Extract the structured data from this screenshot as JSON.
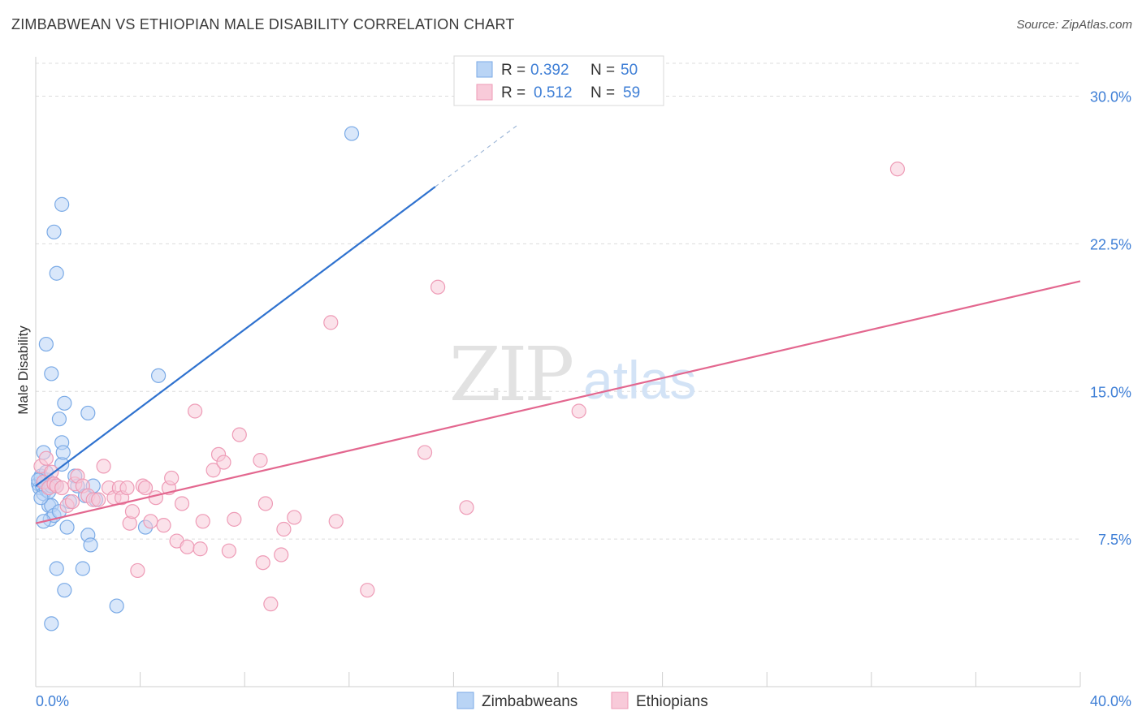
{
  "title": "ZIMBABWEAN VS ETHIOPIAN MALE DISABILITY CORRELATION CHART",
  "source": "Source: ZipAtlas.com",
  "watermark": {
    "zip": "ZIP",
    "atlas": "atlas"
  },
  "colors": {
    "blue_fill": "#b9d4f5",
    "blue_stroke": "#7aaae6",
    "blue_line": "#2f72cf",
    "pink_fill": "#f8cad9",
    "pink_stroke": "#ee9bb6",
    "pink_line": "#e3678f",
    "axis_value": "#3f7fd6",
    "grid": "#dcdcdc"
  },
  "stats": [
    {
      "r_label": "R =",
      "r": "0.392",
      "n_label": "N =",
      "n": "50"
    },
    {
      "r_label": "R =",
      "r": "0.512",
      "n_label": "N =",
      "n": "59"
    }
  ],
  "chart_data": {
    "type": "scatter",
    "title": "ZIMBABWEAN VS ETHIOPIAN MALE DISABILITY CORRELATION CHART",
    "xlabel": "",
    "ylabel": "Male Disability",
    "xlim": [
      0,
      40
    ],
    "ylim": [
      0,
      32
    ],
    "x_tick_labels": [
      {
        "value": 0,
        "label": "0.0%"
      },
      {
        "value": 40,
        "label": "40.0%"
      }
    ],
    "x_minor_ticks": [
      4,
      8,
      12,
      16,
      20,
      24,
      28,
      32,
      36,
      40
    ],
    "y_ticks": [
      {
        "value": 7.5,
        "label": "7.5%"
      },
      {
        "value": 15.0,
        "label": "15.0%"
      },
      {
        "value": 22.5,
        "label": "22.5%"
      },
      {
        "value": 30.0,
        "label": "30.0%"
      }
    ],
    "grid": true,
    "legend_position": "bottom-center",
    "series": [
      {
        "name": "Zimbabweans",
        "color": "#b9d4f5",
        "r": 0.392,
        "n": 50,
        "trend": {
          "x0": 0.0,
          "y0": 10.2,
          "x1": 15.3,
          "y1": 25.4,
          "dashed_to_x": 18.5
        },
        "points": [
          [
            0.1,
            10.3
          ],
          [
            0.15,
            10.1
          ],
          [
            0.2,
            10.6
          ],
          [
            0.25,
            10.2
          ],
          [
            0.3,
            9.8
          ],
          [
            0.35,
            10.4
          ],
          [
            0.4,
            10.0
          ],
          [
            0.45,
            10.5
          ],
          [
            0.5,
            9.9
          ],
          [
            0.2,
            10.7
          ],
          [
            0.3,
            11.9
          ],
          [
            0.4,
            10.9
          ],
          [
            0.5,
            9.2
          ],
          [
            0.55,
            8.5
          ],
          [
            0.6,
            9.2
          ],
          [
            0.7,
            8.7
          ],
          [
            0.8,
            10.2
          ],
          [
            0.9,
            8.9
          ],
          [
            1.0,
            11.3
          ],
          [
            1.0,
            12.4
          ],
          [
            1.05,
            11.9
          ],
          [
            1.1,
            14.4
          ],
          [
            0.9,
            13.6
          ],
          [
            0.6,
            15.9
          ],
          [
            0.4,
            17.4
          ],
          [
            0.8,
            21.0
          ],
          [
            0.7,
            23.1
          ],
          [
            1.0,
            24.5
          ],
          [
            1.2,
            8.1
          ],
          [
            1.5,
            10.7
          ],
          [
            1.6,
            10.2
          ],
          [
            1.8,
            6.0
          ],
          [
            1.9,
            9.7
          ],
          [
            2.0,
            13.9
          ],
          [
            2.0,
            7.7
          ],
          [
            2.1,
            7.2
          ],
          [
            2.2,
            10.2
          ],
          [
            2.3,
            9.5
          ],
          [
            1.1,
            4.9
          ],
          [
            0.6,
            3.2
          ],
          [
            0.8,
            6.0
          ],
          [
            3.1,
            4.1
          ],
          [
            4.2,
            8.1
          ],
          [
            4.7,
            15.8
          ],
          [
            12.1,
            28.1
          ],
          [
            0.3,
            8.4
          ],
          [
            0.6,
            10.2
          ],
          [
            0.1,
            10.5
          ],
          [
            1.3,
            9.4
          ],
          [
            0.2,
            9.6
          ]
        ]
      },
      {
        "name": "Ethiopians",
        "color": "#f8cad9",
        "r": 0.512,
        "n": 59,
        "trend": {
          "x0": 0.0,
          "y0": 8.3,
          "x1": 40.0,
          "y1": 20.6
        },
        "points": [
          [
            0.2,
            11.2
          ],
          [
            0.3,
            10.4
          ],
          [
            0.4,
            11.6
          ],
          [
            0.5,
            10.1
          ],
          [
            0.6,
            10.9
          ],
          [
            0.7,
            10.3
          ],
          [
            0.8,
            10.2
          ],
          [
            1.0,
            10.1
          ],
          [
            1.2,
            9.2
          ],
          [
            1.4,
            9.4
          ],
          [
            1.5,
            10.3
          ],
          [
            1.6,
            10.7
          ],
          [
            1.8,
            10.2
          ],
          [
            2.0,
            9.7
          ],
          [
            2.2,
            9.5
          ],
          [
            2.4,
            9.5
          ],
          [
            2.6,
            11.2
          ],
          [
            2.8,
            10.1
          ],
          [
            3.0,
            9.6
          ],
          [
            3.2,
            10.1
          ],
          [
            3.3,
            9.6
          ],
          [
            3.5,
            10.1
          ],
          [
            3.6,
            8.3
          ],
          [
            3.7,
            8.9
          ],
          [
            3.9,
            5.9
          ],
          [
            4.1,
            10.2
          ],
          [
            4.2,
            10.1
          ],
          [
            4.4,
            8.4
          ],
          [
            4.6,
            9.6
          ],
          [
            4.9,
            8.2
          ],
          [
            5.1,
            10.1
          ],
          [
            5.2,
            10.6
          ],
          [
            5.4,
            7.4
          ],
          [
            5.6,
            9.3
          ],
          [
            5.8,
            7.1
          ],
          [
            6.1,
            14.0
          ],
          [
            6.3,
            7.0
          ],
          [
            6.4,
            8.4
          ],
          [
            6.8,
            11.0
          ],
          [
            7.0,
            11.8
          ],
          [
            7.2,
            11.4
          ],
          [
            7.4,
            6.9
          ],
          [
            7.6,
            8.5
          ],
          [
            7.8,
            12.8
          ],
          [
            8.6,
            11.5
          ],
          [
            8.7,
            6.3
          ],
          [
            8.8,
            9.3
          ],
          [
            9.0,
            4.2
          ],
          [
            9.4,
            6.7
          ],
          [
            9.5,
            8.0
          ],
          [
            9.9,
            8.6
          ],
          [
            11.3,
            18.5
          ],
          [
            11.5,
            8.4
          ],
          [
            12.7,
            4.9
          ],
          [
            14.9,
            11.9
          ],
          [
            15.4,
            20.3
          ],
          [
            16.5,
            9.1
          ],
          [
            20.8,
            14.0
          ],
          [
            33.0,
            26.3
          ]
        ]
      }
    ]
  }
}
